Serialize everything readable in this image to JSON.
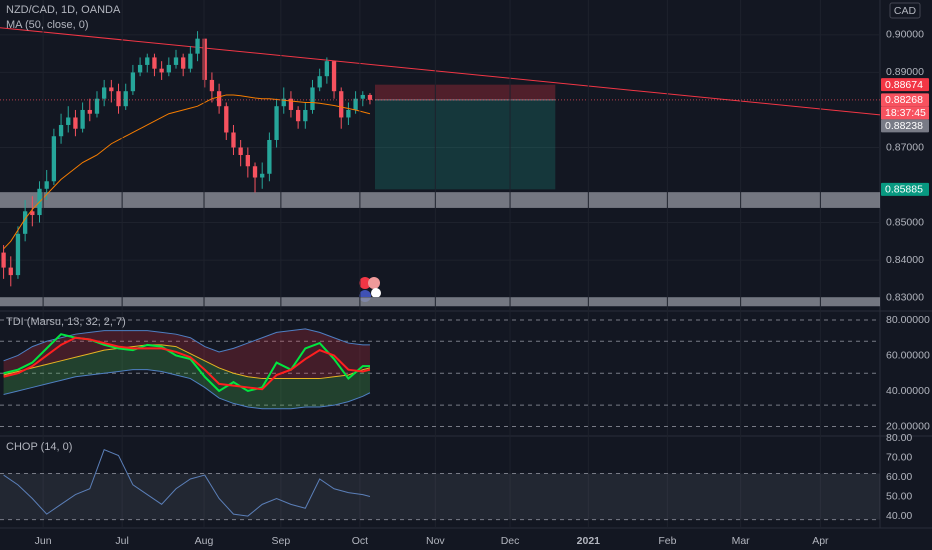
{
  "chart_data": [
    {
      "type": "candlestick",
      "title": "NZD/CAD, 1D, OANDA",
      "currency": "CAD",
      "xlim": [
        0,
        122.5
      ],
      "xticks": [
        {
          "value": 6.0,
          "label": "Jun"
        },
        {
          "value": 17.0,
          "label": "Jul"
        },
        {
          "value": 28.4,
          "label": "Aug"
        },
        {
          "value": 39.1,
          "label": "Sep"
        },
        {
          "value": 50.1,
          "label": "Oct"
        },
        {
          "value": 60.6,
          "label": "Nov"
        },
        {
          "value": 71.0,
          "label": "Dec"
        },
        {
          "value": 81.9,
          "label": "2021"
        },
        {
          "value": 92.9,
          "label": "Feb"
        },
        {
          "value": 103.1,
          "label": "Mar"
        },
        {
          "value": 114.2,
          "label": "Apr"
        }
      ],
      "ylim": [
        0.8267,
        0.9093
      ],
      "yticks": [
        {
          "value": 0.9,
          "label": "0.90000"
        },
        {
          "value": 0.89,
          "label": "0.89000"
        },
        {
          "value": 0.87,
          "label": "0.87000"
        },
        {
          "value": 0.85,
          "label": "0.85000"
        },
        {
          "value": 0.84,
          "label": "0.84000"
        },
        {
          "value": 0.83,
          "label": "0.83000"
        }
      ],
      "grid": true,
      "up_color": "#26a69a",
      "down_color": "#f7525f",
      "open": [
        0.842,
        0.838,
        0.836,
        0.847,
        0.853,
        0.852,
        0.859,
        0.861,
        0.873,
        0.876,
        0.878,
        0.875,
        0.88,
        0.879,
        0.883,
        0.886,
        0.885,
        0.881,
        0.885,
        0.89,
        0.892,
        0.894,
        0.891,
        0.89,
        0.892,
        0.894,
        0.891,
        0.895,
        0.899,
        0.888,
        0.885,
        0.881,
        0.874,
        0.87,
        0.868,
        0.865,
        0.862,
        0.863,
        0.872,
        0.881,
        0.883,
        0.88,
        0.877,
        0.88,
        0.886,
        0.889,
        0.893,
        0.885,
        0.878,
        0.88,
        0.883,
        0.884
      ],
      "high": [
        0.844,
        0.841,
        0.849,
        0.856,
        0.857,
        0.861,
        0.864,
        0.875,
        0.879,
        0.881,
        0.88,
        0.882,
        0.883,
        0.885,
        0.888,
        0.888,
        0.887,
        0.887,
        0.892,
        0.894,
        0.895,
        0.895,
        0.893,
        0.894,
        0.896,
        0.895,
        0.897,
        0.901,
        0.899,
        0.89,
        0.887,
        0.882,
        0.876,
        0.872,
        0.87,
        0.866,
        0.866,
        0.874,
        0.883,
        0.886,
        0.885,
        0.881,
        0.882,
        0.888,
        0.891,
        0.894,
        0.893,
        0.886,
        0.882,
        0.885,
        0.885,
        0.8845
      ],
      "low": [
        0.835,
        0.833,
        0.835,
        0.845,
        0.849,
        0.85,
        0.856,
        0.86,
        0.871,
        0.874,
        0.873,
        0.874,
        0.877,
        0.878,
        0.881,
        0.882,
        0.879,
        0.88,
        0.884,
        0.889,
        0.89,
        0.889,
        0.888,
        0.889,
        0.891,
        0.889,
        0.89,
        0.893,
        0.886,
        0.882,
        0.879,
        0.872,
        0.868,
        0.865,
        0.862,
        0.858,
        0.859,
        0.861,
        0.87,
        0.879,
        0.878,
        0.875,
        0.875,
        0.879,
        0.885,
        0.887,
        0.883,
        0.875,
        0.876,
        0.879,
        0.881,
        0.8815
      ],
      "close": [
        0.838,
        0.836,
        0.847,
        0.853,
        0.852,
        0.859,
        0.861,
        0.873,
        0.876,
        0.878,
        0.875,
        0.88,
        0.879,
        0.883,
        0.886,
        0.885,
        0.881,
        0.885,
        0.89,
        0.892,
        0.894,
        0.891,
        0.89,
        0.892,
        0.894,
        0.891,
        0.895,
        0.899,
        0.888,
        0.885,
        0.881,
        0.874,
        0.87,
        0.868,
        0.865,
        0.862,
        0.863,
        0.872,
        0.881,
        0.883,
        0.88,
        0.877,
        0.88,
        0.886,
        0.889,
        0.893,
        0.885,
        0.878,
        0.88,
        0.883,
        0.884,
        0.8827
      ],
      "series": [
        {
          "name": "MA (50, close, 0)",
          "color": "#f57c00",
          "values": [
            0.843,
            0.845,
            0.848,
            0.851,
            0.8535,
            0.8555,
            0.8575,
            0.8595,
            0.8615,
            0.863,
            0.8645,
            0.866,
            0.867,
            0.868,
            0.8695,
            0.871,
            0.872,
            0.873,
            0.874,
            0.875,
            0.876,
            0.877,
            0.878,
            0.879,
            0.8795,
            0.88,
            0.8805,
            0.881,
            0.882,
            0.883,
            0.8835,
            0.884,
            0.884,
            0.8838,
            0.8835,
            0.8832,
            0.883,
            0.883,
            0.8828,
            0.8826,
            0.8824,
            0.8822,
            0.882,
            0.882,
            0.8818,
            0.8815,
            0.8812,
            0.8808,
            0.8804,
            0.88,
            0.8795,
            0.879
          ]
        }
      ],
      "trendline": {
        "color": "#f23645",
        "x": [
          0,
          122.5
        ],
        "values": [
          0.9019,
          0.8787
        ]
      },
      "zones": [
        {
          "from": 0.8539,
          "to": 0.8581,
          "color": "#9598a1"
        },
        {
          "from": 0.8277,
          "to": 0.8301,
          "color": "#9598a1"
        }
      ],
      "position": {
        "x": [
          52.2,
          77.3
        ],
        "entry": 0.88268,
        "stop": 0.88674,
        "target": 0.85885,
        "stop_color": "rgba(242,54,69,0.28)",
        "target_color": "rgba(34,171,148,0.22)"
      },
      "markers": [
        {
          "value": 0.88674,
          "color": "#f23645"
        },
        {
          "value": 0.88268,
          "color": "#f7525f",
          "countdown": "18:37:45"
        },
        {
          "value": 0.88238,
          "color": "#787b86"
        },
        {
          "value": 0.85885,
          "color": "#089981"
        }
      ]
    },
    {
      "type": "line",
      "title": "TDI (Marsu, 13, 32, 2, 7)",
      "xlim": [
        0,
        122.5
      ],
      "ylim": [
        15.2,
        84.5
      ],
      "yticks": [
        {
          "value": 80,
          "label": "80.00000"
        },
        {
          "value": 60,
          "label": "60.00000"
        },
        {
          "value": 40,
          "label": "40.00000"
        },
        {
          "value": 20,
          "label": "20.00000"
        }
      ],
      "levels": [
        80,
        68,
        50,
        32,
        20
      ],
      "x": [
        0,
        2,
        4,
        6,
        8,
        10,
        12,
        14,
        16,
        18,
        20,
        22,
        24,
        26,
        28,
        30,
        32,
        34,
        36,
        38,
        40,
        42,
        44,
        46,
        48,
        50,
        51
      ],
      "series": [
        {
          "color": "#4f7fc2",
          "values": [
            57,
            60,
            65,
            68,
            70,
            72,
            73,
            74,
            74,
            74,
            74,
            73,
            72,
            70,
            65,
            62,
            64,
            67,
            70,
            73,
            74,
            75,
            73,
            70,
            67,
            66,
            66
          ],
          "fill_to": 2,
          "fill": "rgba(242,54,69,0.22)"
        },
        {
          "color": "#4f7fc2",
          "values": [
            38,
            40,
            42,
            44,
            46,
            48,
            49,
            50,
            51,
            52,
            52,
            51,
            49,
            47,
            42,
            36,
            33,
            31,
            30,
            30,
            30,
            31,
            31,
            32,
            34,
            37,
            39
          ],
          "fill_to": 2,
          "fill": "rgba(76,175,80,0.28)"
        },
        {
          "color": "#e6b422",
          "values": [
            49,
            51,
            53,
            55,
            57,
            59,
            61,
            63,
            64,
            65,
            66,
            66,
            65,
            61,
            57,
            53,
            50,
            48,
            47,
            47,
            47,
            47,
            47,
            48,
            49,
            52,
            53
          ]
        },
        {
          "color": "#00e640",
          "width": 2,
          "values": [
            50,
            52,
            56,
            64,
            72,
            70,
            69,
            66,
            64,
            63,
            66,
            65,
            60,
            58,
            48,
            40,
            45,
            40,
            42,
            56,
            52,
            64,
            67,
            58,
            47,
            54,
            54
          ]
        },
        {
          "color": "#ff1f1f",
          "width": 2,
          "values": [
            48,
            50,
            54,
            60,
            66,
            70,
            69,
            67,
            65,
            64,
            64,
            64,
            62,
            59,
            52,
            44,
            43,
            42,
            41,
            49,
            52,
            58,
            63,
            60,
            52,
            51,
            52
          ]
        }
      ]
    },
    {
      "type": "line",
      "title": "CHOP (14, 0)",
      "xlim": [
        0,
        122.5
      ],
      "ylim": [
        34.4,
        80.5
      ],
      "yticks": [
        {
          "value": 80,
          "label": "80.00"
        },
        {
          "value": 70,
          "label": "70.00"
        },
        {
          "value": 60,
          "label": "60.00"
        },
        {
          "value": 50,
          "label": "50.00"
        },
        {
          "value": 40,
          "label": "40.00"
        }
      ],
      "levels": [
        61.8,
        38.2
      ],
      "band": [
        38.2,
        61.8
      ],
      "band_color": "rgba(120,123,134,0.16)",
      "x": [
        0,
        2,
        4,
        6,
        8,
        10,
        12,
        14,
        16,
        18,
        20,
        22,
        24,
        26,
        28,
        30,
        32,
        34,
        36,
        38,
        40,
        42,
        44,
        46,
        48,
        50,
        51
      ],
      "series": [
        {
          "color": "#5b7fb8",
          "values": [
            61,
            56,
            49,
            41,
            46,
            51,
            54,
            74,
            71,
            56,
            51,
            46,
            54,
            59,
            61,
            49,
            41,
            40,
            46,
            49,
            46,
            44,
            59,
            54,
            52,
            51,
            50
          ]
        }
      ]
    }
  ]
}
